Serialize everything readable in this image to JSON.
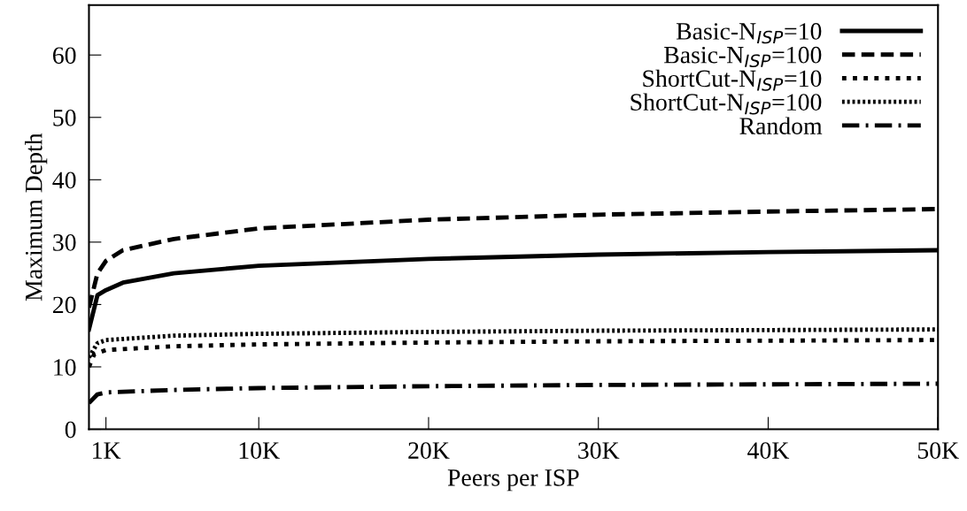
{
  "chart_data": {
    "type": "line",
    "xlabel": "Peers per ISP",
    "ylabel": "Maximum Depth",
    "xlim": [
      0,
      50000
    ],
    "xticks": [
      {
        "value": 1000,
        "label": "1K"
      },
      {
        "value": 10000,
        "label": "10K"
      },
      {
        "value": 20000,
        "label": "20K"
      },
      {
        "value": 30000,
        "label": "30K"
      },
      {
        "value": 40000,
        "label": "40K"
      },
      {
        "value": 50000,
        "label": "50K"
      }
    ],
    "ylim": [
      0,
      68
    ],
    "yticks": [
      0,
      10,
      20,
      30,
      40,
      50,
      60
    ],
    "grid": false,
    "legend": "top right",
    "marker": "none",
    "series": [
      {
        "name": "Basic-N$_{ISP}$=10",
        "color": "#000000",
        "line_style": "solid",
        "x": [
          0,
          500,
          1000,
          2000,
          5000,
          10000,
          20000,
          30000,
          40000,
          50000
        ],
        "values": [
          16,
          21.5,
          22.3,
          23.5,
          25,
          26.2,
          27.3,
          28,
          28.4,
          28.7
        ]
      },
      {
        "name": "Basic-N$_{ISP}$=100",
        "color": "#000000",
        "line_style": "dashed",
        "x": [
          0,
          500,
          1000,
          2000,
          5000,
          10000,
          20000,
          30000,
          40000,
          50000
        ],
        "values": [
          19.5,
          25,
          27,
          28.7,
          30.5,
          32.2,
          33.6,
          34.4,
          34.9,
          35.3
        ]
      },
      {
        "name": "ShortCut-N$_{ISP}$=10",
        "color": "#000000",
        "line_style": "dotted",
        "x": [
          0,
          300,
          1000,
          5000,
          10000,
          20000,
          30000,
          50000
        ],
        "values": [
          10,
          12,
          12.7,
          13.3,
          13.6,
          13.9,
          14.1,
          14.3
        ]
      },
      {
        "name": "ShortCut-N$_{ISP}$=100",
        "color": "#000000",
        "line_style": "densely dotted",
        "x": [
          0,
          500,
          1000,
          5000,
          10000,
          20000,
          30000,
          50000
        ],
        "values": [
          11.5,
          13.8,
          14.3,
          15,
          15.3,
          15.6,
          15.8,
          16
        ]
      },
      {
        "name": "Random",
        "color": "#000000",
        "line_style": "dashdot",
        "x": [
          0,
          500,
          1000,
          5000,
          10000,
          20000,
          30000,
          50000
        ],
        "values": [
          4.2,
          5.6,
          5.9,
          6.3,
          6.6,
          6.9,
          7.1,
          7.3
        ]
      }
    ]
  }
}
